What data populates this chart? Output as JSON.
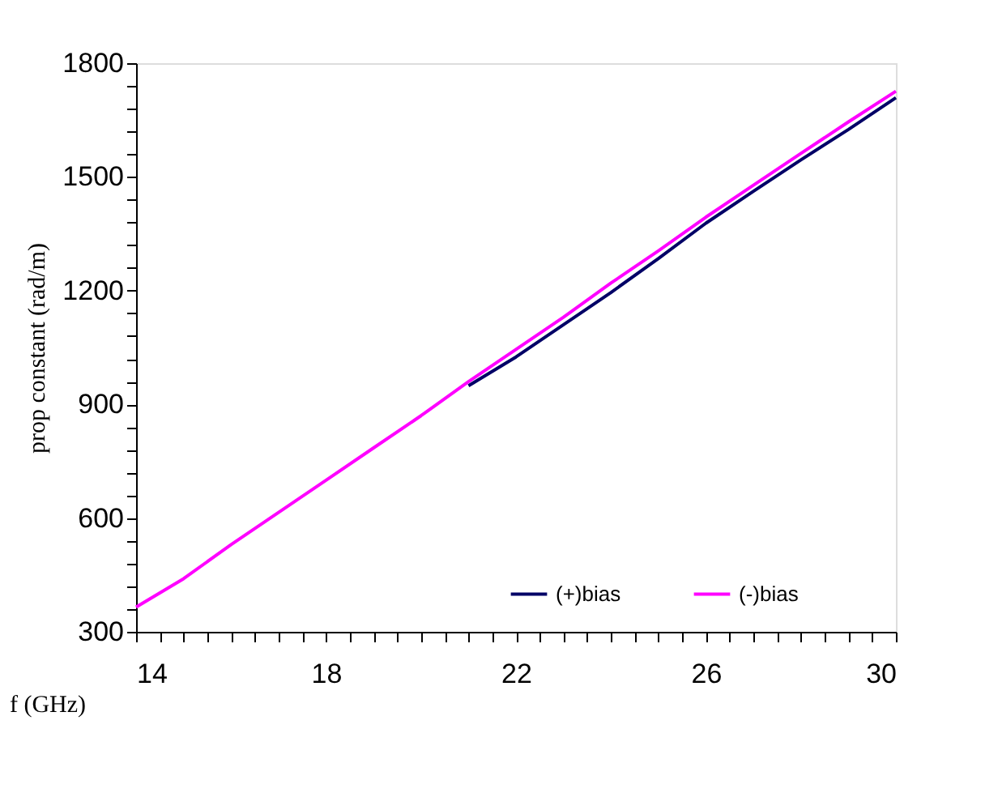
{
  "chart_data": {
    "type": "line",
    "xlabel": "f (GHz)",
    "ylabel": "prop constant (rad/m)",
    "xlim": [
      14,
      30
    ],
    "ylim": [
      300,
      1800
    ],
    "xticks": [
      14,
      {
        "value": 14.5,
        "label": null
      },
      {
        "value": 15,
        "label": null
      },
      {
        "value": 15.5,
        "label": null
      },
      {
        "value": 16,
        "label": null
      },
      {
        "value": 16.5,
        "label": null
      },
      {
        "value": 17,
        "label": null
      },
      {
        "value": 17.5,
        "label": null
      },
      18,
      {
        "value": 18.5,
        "label": null
      },
      {
        "value": 19,
        "label": null
      },
      {
        "value": 19.5,
        "label": null
      },
      {
        "value": 20,
        "label": null
      },
      {
        "value": 20.5,
        "label": null
      },
      {
        "value": 21,
        "label": null
      },
      {
        "value": 21.5,
        "label": null
      },
      22,
      {
        "value": 22.5,
        "label": null
      },
      {
        "value": 23,
        "label": null
      },
      {
        "value": 23.5,
        "label": null
      },
      {
        "value": 24,
        "label": null
      },
      {
        "value": 24.5,
        "label": null
      },
      {
        "value": 25,
        "label": null
      },
      {
        "value": 25.5,
        "label": null
      },
      26,
      {
        "value": 26.5,
        "label": null
      },
      {
        "value": 27,
        "label": null
      },
      {
        "value": 27.5,
        "label": null
      },
      {
        "value": 28,
        "label": null
      },
      {
        "value": 28.5,
        "label": null
      },
      {
        "value": 29,
        "label": null
      },
      {
        "value": 29.5,
        "label": null
      },
      30
    ],
    "yticks": [
      300,
      {
        "value": 360,
        "label": null
      },
      {
        "value": 420,
        "label": null
      },
      {
        "value": 480,
        "label": null
      },
      {
        "value": 540,
        "label": null
      },
      600,
      {
        "value": 660,
        "label": null
      },
      {
        "value": 720,
        "label": null
      },
      {
        "value": 780,
        "label": null
      },
      {
        "value": 840,
        "label": null
      },
      900,
      {
        "value": 960,
        "label": null
      },
      {
        "value": 1020,
        "label": null
      },
      {
        "value": 1080,
        "label": null
      },
      {
        "value": 1140,
        "label": null
      },
      1200,
      {
        "value": 1260,
        "label": null
      },
      {
        "value": 1320,
        "label": null
      },
      {
        "value": 1380,
        "label": null
      },
      {
        "value": 1440,
        "label": null
      },
      1500,
      {
        "value": 1560,
        "label": null
      },
      {
        "value": 1620,
        "label": null
      },
      {
        "value": 1680,
        "label": null
      },
      {
        "value": 1740,
        "label": null
      },
      1800
    ],
    "grid": false,
    "legend": "bottom right",
    "line_style": "solid",
    "marker": "none",
    "series": [
      {
        "name": "(+)bias",
        "color": "#000066",
        "x": [
          21,
          22,
          23,
          24,
          25,
          26,
          27,
          28,
          29,
          30
        ],
        "values": [
          949,
          1025,
          1110,
          1195,
          1285,
          1378,
          1462,
          1545,
          1625,
          1709
        ]
      },
      {
        "name": "(-)bias",
        "color": "#ff00ff",
        "x": [
          14,
          15,
          16,
          17,
          18,
          19,
          20,
          21,
          22,
          23,
          24,
          25,
          26,
          27,
          28,
          29,
          30
        ],
        "values": [
          365,
          440,
          530,
          615,
          700,
          785,
          870,
          960,
          1045,
          1130,
          1220,
          1305,
          1394,
          1478,
          1562,
          1645,
          1726
        ]
      }
    ]
  }
}
